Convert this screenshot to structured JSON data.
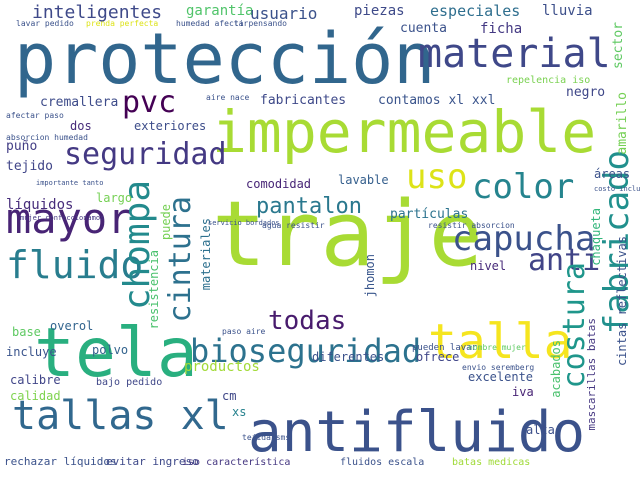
{
  "words": [
    {
      "text": "protección",
      "color": "#31668d",
      "v": false
    },
    {
      "text": "impermeable",
      "color": "#a8db34",
      "v": false
    },
    {
      "text": "traje",
      "color": "#a8db34",
      "v": false
    },
    {
      "text": "tela",
      "color": "#29af7f",
      "v": false
    },
    {
      "text": "antifluido",
      "color": "#3b528b",
      "v": false
    },
    {
      "text": "material",
      "color": "#3f4889",
      "v": false
    },
    {
      "text": "mayor",
      "color": "#482475",
      "v": false
    },
    {
      "text": "tallas xl",
      "color": "#31688e",
      "v": false
    },
    {
      "text": "bioseguridad",
      "color": "#2c728e",
      "v": false
    },
    {
      "text": "talla",
      "color": "#f5e51f",
      "v": false
    },
    {
      "text": "capucha",
      "color": "#3b528b",
      "v": false
    },
    {
      "text": "fluido",
      "color": "#287d8e",
      "v": false
    },
    {
      "text": "seguridad",
      "color": "#443983",
      "v": false
    },
    {
      "text": "color",
      "color": "#25848e",
      "v": false
    },
    {
      "text": "uso",
      "color": "#dde318",
      "v": false
    },
    {
      "text": "pvc",
      "color": "#440154",
      "v": false
    },
    {
      "text": "anti",
      "color": "#414487",
      "v": false
    },
    {
      "text": "pantalon",
      "color": "#2a788e",
      "v": false
    },
    {
      "text": "todas",
      "color": "#481b6d",
      "v": false
    },
    {
      "text": "fabricado",
      "color": "#21908d",
      "v": true
    },
    {
      "text": "costura",
      "color": "#1f968b",
      "v": true
    },
    {
      "text": "chompa",
      "color": "#238a8d",
      "v": true
    },
    {
      "text": "cintura",
      "color": "#2d718e",
      "v": true
    },
    {
      "text": "inteligentes",
      "color": "#3e4989",
      "v": false
    },
    {
      "text": "garantía",
      "color": "#50c46a",
      "v": false
    },
    {
      "text": "usuario",
      "color": "#3b528b",
      "v": false
    },
    {
      "text": "piezas",
      "color": "#3e4a89",
      "v": false
    },
    {
      "text": "especiales",
      "color": "#2e6e8e",
      "v": false
    },
    {
      "text": "lluvia",
      "color": "#3c4f8a",
      "v": false
    },
    {
      "text": "cuenta",
      "color": "#3b528b",
      "v": false
    },
    {
      "text": "ficha",
      "color": "#443983",
      "v": false
    },
    {
      "text": "sector",
      "color": "#5ec962",
      "v": true
    },
    {
      "text": "amarillo",
      "color": "#75d054",
      "v": true
    },
    {
      "text": "fabricantes",
      "color": "#3e4989",
      "v": false
    },
    {
      "text": "contamos xl xxl",
      "color": "#3a548c",
      "v": false
    },
    {
      "text": "negro",
      "color": "#3f4788",
      "v": false
    },
    {
      "text": "cremallera",
      "color": "#3e4c8a",
      "v": false
    },
    {
      "text": "dos",
      "color": "#472c7a",
      "v": false
    },
    {
      "text": "exteriores",
      "color": "#3d4d8a",
      "v": false
    },
    {
      "text": "puño",
      "color": "#433e85",
      "v": false
    },
    {
      "text": "tejido",
      "color": "#404588",
      "v": false
    },
    {
      "text": "comodidad",
      "color": "#482677",
      "v": false
    },
    {
      "text": "lavable",
      "color": "#355f8d",
      "v": false
    },
    {
      "text": "áreas",
      "color": "#3b528b",
      "v": false
    },
    {
      "text": "líquidos",
      "color": "#472d7b",
      "v": false
    },
    {
      "text": "largo",
      "color": "#75d054",
      "v": false
    },
    {
      "text": "partículas",
      "color": "#2c738e",
      "v": false
    },
    {
      "text": "chaqueta",
      "color": "#32b67a",
      "v": true
    },
    {
      "text": "puede",
      "color": "#75d054",
      "v": true
    },
    {
      "text": "materiales",
      "color": "#2d708e",
      "v": true
    },
    {
      "text": "cintas reflectivas",
      "color": "#3b528b",
      "v": true
    },
    {
      "text": "resistencia",
      "color": "#4ac16d",
      "v": true
    },
    {
      "text": "jhomon",
      "color": "#39568c",
      "v": true
    },
    {
      "text": "nivel",
      "color": "#472a7a",
      "v": false
    },
    {
      "text": "ofrece",
      "color": "#404688",
      "v": false
    },
    {
      "text": "excelente",
      "color": "#3b528b",
      "v": false
    },
    {
      "text": "iva",
      "color": "#482475",
      "v": false
    },
    {
      "text": "base",
      "color": "#5ec962",
      "v": false
    },
    {
      "text": "overol",
      "color": "#32648e",
      "v": false
    },
    {
      "text": "incluye",
      "color": "#3a548c",
      "v": false
    },
    {
      "text": "polvo",
      "color": "#33638d",
      "v": false
    },
    {
      "text": "calibre",
      "color": "#404588",
      "v": false
    },
    {
      "text": "calidad",
      "color": "#7fd34e",
      "v": false
    },
    {
      "text": "productos",
      "color": "#a2da37",
      "v": false
    },
    {
      "text": "diferentes",
      "color": "#3b528b",
      "v": false
    },
    {
      "text": "cm",
      "color": "#3f4788",
      "v": false
    },
    {
      "text": "xs",
      "color": "#26828e",
      "v": false
    },
    {
      "text": "acabados",
      "color": "#4ac16d",
      "v": true
    },
    {
      "text": "alta",
      "color": "#3c4f8a",
      "v": false
    },
    {
      "text": "bajo pedido",
      "color": "#3f4788",
      "v": false
    },
    {
      "text": "rechazar líquidos",
      "color": "#3b528b",
      "v": false
    },
    {
      "text": "evitar ingreso",
      "color": "#3e4989",
      "v": false
    },
    {
      "text": "iso característica",
      "color": "#453781",
      "v": false
    },
    {
      "text": "fluidos escala",
      "color": "#3b528b",
      "v": false
    },
    {
      "text": "batas medicas",
      "color": "#a0da39",
      "v": false
    },
    {
      "text": "mascarillas batas",
      "color": "#453781",
      "v": true
    },
    {
      "text": "repelencia iso",
      "color": "#7ad151",
      "v": false
    },
    {
      "text": "aire nace",
      "color": "#3b528b",
      "v": false
    },
    {
      "text": "afectar paso",
      "color": "#3b528b",
      "v": false
    },
    {
      "text": "absorcion humedad",
      "color": "#3b528b",
      "v": false
    },
    {
      "text": "lavar pedido",
      "color": "#3b528b",
      "v": false
    },
    {
      "text": "prenda perfecta",
      "color": "#dde318",
      "v": false
    },
    {
      "text": "humedad afectar",
      "color": "#3b528b",
      "v": false
    },
    {
      "text": "ti pensando",
      "color": "#3b528b",
      "v": false
    },
    {
      "text": "importante tanto",
      "color": "#3b528b",
      "v": false
    },
    {
      "text": "mujer confeccionamos",
      "color": "#453781",
      "v": false
    },
    {
      "text": "servicio bordados",
      "color": "#3b528b",
      "v": false
    },
    {
      "text": "agua resistir",
      "color": "#3b528b",
      "v": false
    },
    {
      "text": "resistir absorcion",
      "color": "#3b528b",
      "v": false
    },
    {
      "text": "costo incluye",
      "color": "#3b528b",
      "v": false
    },
    {
      "text": "paso aire",
      "color": "#3b528b",
      "v": false
    },
    {
      "text": "pueden lavar",
      "color": "#3b528b",
      "v": false
    },
    {
      "text": "nombre mujer",
      "color": "#5ec962",
      "v": false
    },
    {
      "text": "envio seremberg",
      "color": "#3b528b",
      "v": false
    },
    {
      "text": "tejida sms",
      "color": "#3b528b",
      "v": false
    }
  ]
}
